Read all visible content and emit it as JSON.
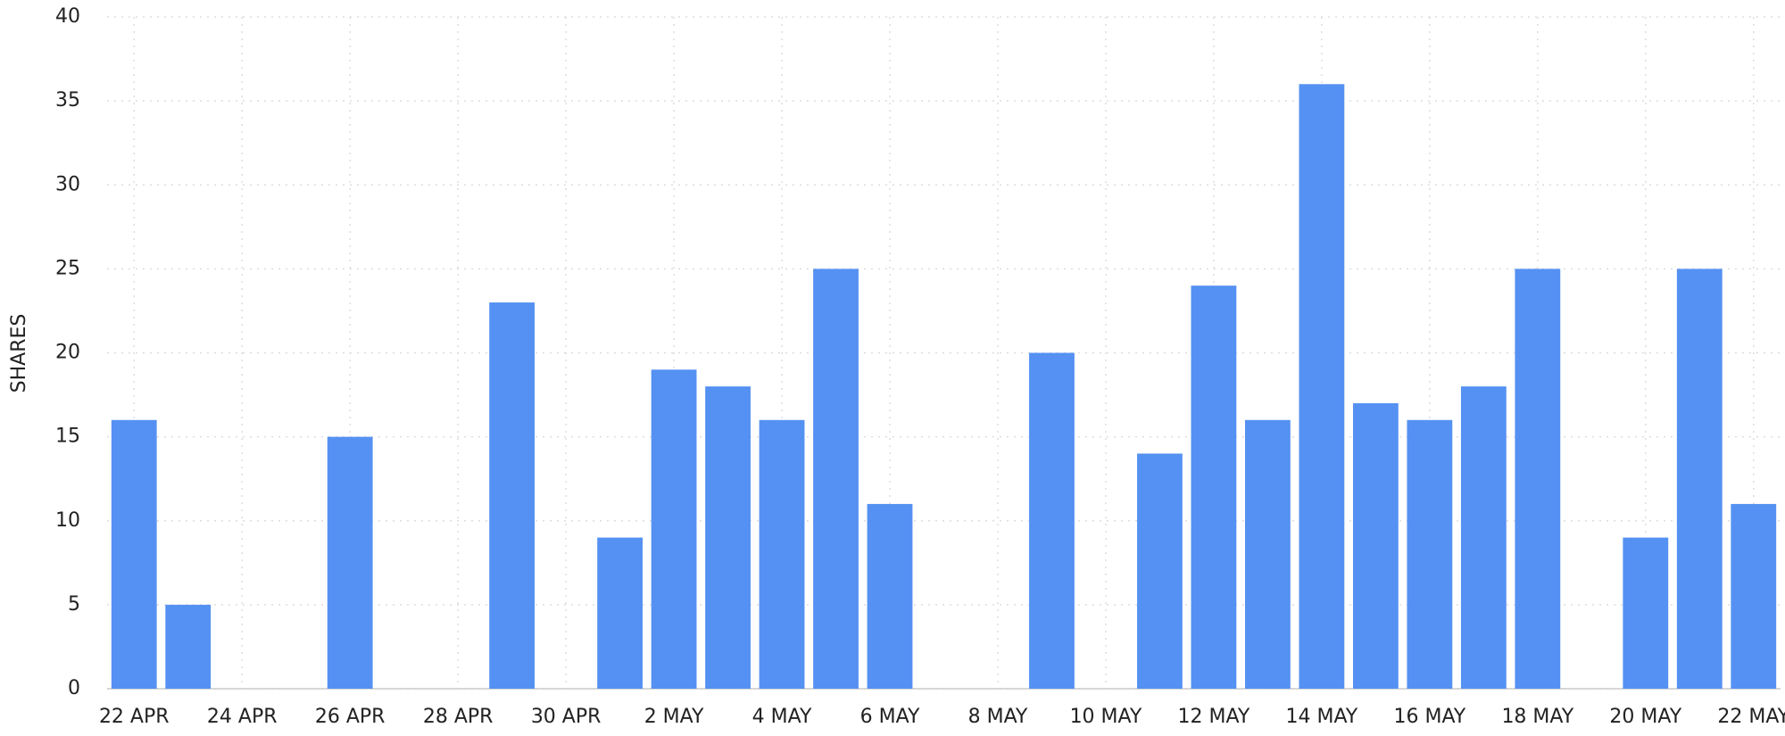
{
  "chart_data": {
    "type": "bar",
    "y_label": "SHARES",
    "categories": [
      "22 APR",
      null,
      "24 APR",
      null,
      "26 APR",
      null,
      "28 APR",
      null,
      "30 APR",
      null,
      "2 MAY",
      null,
      "4 MAY",
      null,
      "6 MAY",
      null,
      "8 MAY",
      null,
      "10 MAY",
      null,
      "12 MAY",
      null,
      "14 MAY",
      null,
      "16 MAY",
      null,
      "18 MAY",
      null,
      "20 MAY",
      null,
      "22 MAY"
    ],
    "values": [
      16,
      5,
      0,
      0,
      15,
      0,
      0,
      23,
      0,
      9,
      19,
      18,
      16,
      25,
      11,
      0,
      0,
      20,
      0,
      14,
      24,
      16,
      36,
      17,
      16,
      18,
      25,
      0,
      9,
      25,
      11
    ],
    "color": "#5591f2",
    "ylim": [
      0,
      40
    ],
    "yticks": [
      0,
      5,
      10,
      15,
      20,
      25,
      30,
      35,
      40
    ],
    "grid": true
  }
}
